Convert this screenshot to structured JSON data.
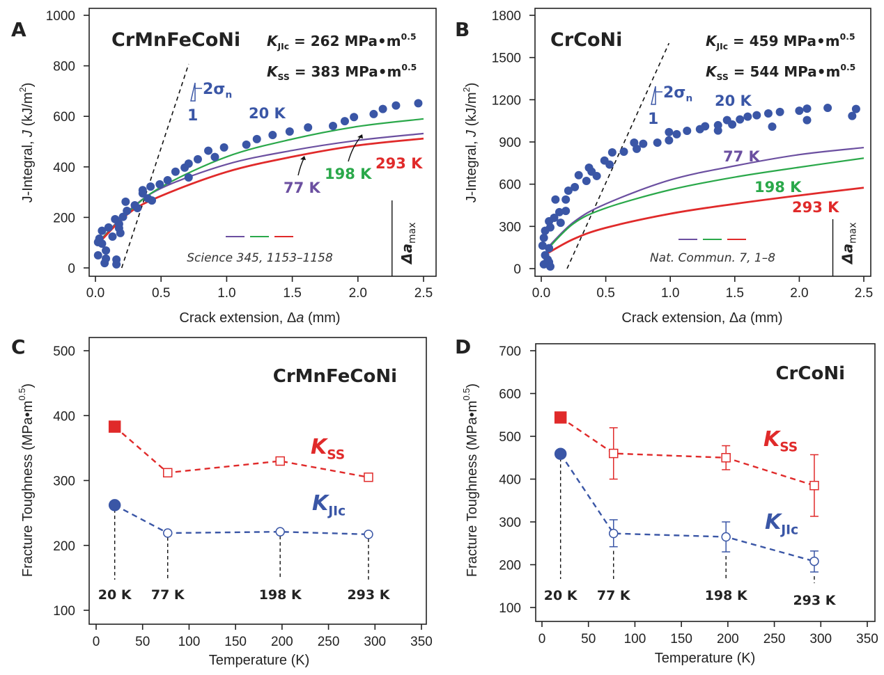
{
  "colors": {
    "blue": "#3a56a6",
    "purple": "#6b4fa0",
    "green": "#2aa84a",
    "red": "#e02a2a",
    "black": "#222222"
  },
  "chart_data": [
    {
      "panel": "A",
      "type": "scatter",
      "title": "CrMnFeCoNi",
      "xlabel": "Crack extension, Δa (mm)",
      "ylabel": "J-Integral, J (kJ/m²)",
      "xlim": [
        0,
        2.5
      ],
      "ylim": [
        0,
        1000
      ],
      "xticks": [
        "0.0",
        "0.5",
        "1.0",
        "1.5",
        "2.0",
        "2.5"
      ],
      "yticks": [
        "0",
        "200",
        "400",
        "600",
        "800",
        "1000"
      ],
      "annotations": {
        "kjic": {
          "k": "K",
          "sub": "JIc",
          "rest": " = 262 MPa•m",
          "sup": "0.5"
        },
        "kss": {
          "k": "K",
          "sub": "SS",
          "rest": " = 383 MPa•m",
          "sup": "0.5"
        },
        "slope": {
          "rise": "2σ",
          "rise_sub": "n",
          "run": "1"
        },
        "dmax": {
          "main": "Δa",
          "sub": "max"
        },
        "reference": "Science 345, 1153–1158"
      },
      "blunting_line": {
        "x": [
          0.2,
          0.71
        ],
        "y": [
          0,
          807
        ]
      },
      "delta_a_max": 2.26,
      "scatter": {
        "name": "20 K",
        "x": [
          2.46,
          2.29,
          2.19,
          2.12,
          1.97,
          1.9,
          1.81,
          1.62,
          1.48,
          1.35,
          1.23,
          1.15,
          0.98,
          0.91,
          0.86,
          0.78,
          0.71,
          0.68,
          0.71,
          0.61,
          0.55,
          0.49,
          0.42,
          0.36,
          0.36,
          0.4,
          0.43,
          0.32,
          0.3,
          0.23,
          0.24,
          0.21,
          0.18,
          0.15,
          0.18,
          0.19,
          0.1,
          0.05,
          0.13,
          0.03,
          0.02,
          0.08,
          0.02,
          0.08,
          0.07,
          0.16,
          0.16,
          0.05
        ],
        "y": [
          652,
          643,
          629,
          609,
          597,
          581,
          562,
          556,
          540,
          526,
          510,
          488,
          477,
          439,
          464,
          430,
          413,
          397,
          358,
          381,
          347,
          331,
          322,
          308,
          295,
          275,
          267,
          237,
          248,
          262,
          226,
          202,
          174,
          193,
          157,
          138,
          160,
          147,
          124,
          116,
          102,
          69,
          50,
          37,
          19,
          33,
          14,
          96
        ]
      },
      "curves": [
        {
          "name": "77 K",
          "color": "purple",
          "x": [
            0.02,
            0.25,
            0.5,
            1.0,
            1.5,
            2.0,
            2.5
          ],
          "y": [
            100,
            225,
            315,
            410,
            465,
            505,
            532
          ]
        },
        {
          "name": "198 K",
          "color": "green",
          "x": [
            0.02,
            0.25,
            0.5,
            1.0,
            1.5,
            2.0,
            2.5
          ],
          "y": [
            100,
            220,
            320,
            440,
            510,
            560,
            590
          ]
        },
        {
          "name": "293 K",
          "color": "red",
          "x": [
            0.02,
            0.25,
            0.5,
            1.0,
            1.5,
            2.0,
            2.5
          ],
          "y": [
            95,
            215,
            285,
            380,
            440,
            485,
            512
          ]
        }
      ]
    },
    {
      "panel": "B",
      "type": "scatter",
      "title": "CrCoNi",
      "xlabel": "Crack extension, Δa (mm)",
      "ylabel": "J-Integral, J (kJ/m²)",
      "xlim": [
        0,
        2.5
      ],
      "ylim": [
        0,
        1800
      ],
      "xticks": [
        "0.0",
        "0.5",
        "1.0",
        "1.5",
        "2.0",
        "2.5"
      ],
      "yticks": [
        "0",
        "300",
        "600",
        "900",
        "1200",
        "1500",
        "1800"
      ],
      "annotations": {
        "kjic": {
          "k": "K",
          "sub": "JIc",
          "rest": " = 459 MPa•m",
          "sup": "0.5"
        },
        "kss": {
          "k": "K",
          "sub": "SS",
          "rest": " = 544 MPa•m",
          "sup": "0.5"
        },
        "slope": {
          "rise": "2σ",
          "rise_sub": "n",
          "run": "1"
        },
        "dmax": {
          "main": "Δa",
          "sub": "max"
        },
        "reference": "Nat. Commun. 7, 1–8"
      },
      "blunting_line": {
        "x": [
          0.2,
          0.99
        ],
        "y": [
          0,
          1602
        ]
      },
      "delta_a_max": 2.26,
      "scatter": {
        "name": "20 K",
        "x": [
          2.44,
          2.41,
          2.22,
          2.06,
          2.06,
          2.0,
          1.85,
          1.79,
          1.76,
          1.67,
          1.6,
          1.54,
          1.48,
          1.44,
          1.37,
          1.37,
          1.27,
          1.23,
          1.13,
          1.05,
          0.99,
          0.99,
          0.9,
          0.79,
          0.74,
          0.72,
          0.64,
          0.55,
          0.53,
          0.49,
          0.43,
          0.39,
          0.37,
          0.35,
          0.29,
          0.26,
          0.21,
          0.19,
          0.19,
          0.11,
          0.14,
          0.1,
          0.06,
          0.07,
          0.03,
          0.02,
          0.01,
          0.06,
          0.03,
          0.06,
          0.02,
          0.05,
          0.07,
          0.15
        ],
        "y": [
          1134,
          1085,
          1142,
          1137,
          1055,
          1122,
          1113,
          1009,
          1103,
          1090,
          1080,
          1060,
          1024,
          1055,
          1019,
          981,
          1011,
          991,
          979,
          955,
          912,
          970,
          895,
          887,
          851,
          895,
          831,
          826,
          739,
          768,
          658,
          689,
          717,
          623,
          664,
          579,
          554,
          491,
          410,
          491,
          401,
          361,
          336,
          293,
          269,
          219,
          163,
          145,
          95,
          46,
          30,
          64,
          15,
          326
        ]
      },
      "curves": [
        {
          "name": "77 K",
          "color": "purple",
          "x": [
            0.05,
            0.25,
            0.5,
            1.0,
            1.5,
            2.0,
            2.5
          ],
          "y": [
            150,
            330,
            460,
            630,
            730,
            810,
            860
          ]
        },
        {
          "name": "198 K",
          "color": "green",
          "x": [
            0.05,
            0.25,
            0.5,
            1.0,
            1.5,
            2.0,
            2.5
          ],
          "y": [
            140,
            320,
            430,
            560,
            650,
            720,
            785
          ]
        },
        {
          "name": "293 K",
          "color": "red",
          "x": [
            0.05,
            0.25,
            0.5,
            1.0,
            1.5,
            2.0,
            2.5
          ],
          "y": [
            110,
            210,
            290,
            390,
            460,
            520,
            575
          ]
        }
      ]
    },
    {
      "panel": "C",
      "type": "line",
      "title": "CrMnFeCoNi",
      "xlabel": "Temperature (K)",
      "ylabel": "Fracture Toughness (MPa•m0.5)",
      "ylabel_parts": {
        "main": "Fracture Toughness (MPa•m",
        "sup": "0.5",
        "end": ")"
      },
      "xlim": [
        0,
        350
      ],
      "ylim": [
        100,
        500
      ],
      "xticks": [
        "0",
        "50",
        "100",
        "150",
        "200",
        "250",
        "300",
        "350"
      ],
      "yticks": [
        "100",
        "200",
        "300",
        "400",
        "500"
      ],
      "temperature_labels": [
        "20 K",
        "77 K",
        "198 K",
        "293 K"
      ],
      "series": [
        {
          "name": "KSS",
          "label": {
            "k": "K",
            "sub": "SS"
          },
          "color": "red",
          "marker": "square",
          "x": [
            20,
            77,
            198,
            293
          ],
          "y": [
            383,
            312,
            330,
            305
          ]
        },
        {
          "name": "KJIc",
          "label": {
            "k": "K",
            "sub": "JIc"
          },
          "color": "blue",
          "marker": "circle",
          "x": [
            20,
            77,
            198,
            293
          ],
          "y": [
            262,
            219,
            221,
            217
          ]
        }
      ]
    },
    {
      "panel": "D",
      "type": "line",
      "title": "CrCoNi",
      "xlabel": "Temperature (K)",
      "ylabel": "Fracture Toughness (MPa•m0.5)",
      "ylabel_parts": {
        "main": "Fracture Toughness (MPa•m",
        "sup": "0.5",
        "end": ")"
      },
      "xlim": [
        0,
        350
      ],
      "ylim": [
        100,
        700
      ],
      "xticks": [
        "0",
        "50",
        "100",
        "150",
        "200",
        "250",
        "300",
        "350"
      ],
      "yticks": [
        "100",
        "200",
        "300",
        "400",
        "500",
        "600",
        "700"
      ],
      "temperature_labels": [
        "20 K",
        "77 K",
        "198 K",
        "293 K"
      ],
      "series": [
        {
          "name": "KSS",
          "label": {
            "k": "K",
            "sub": "SS"
          },
          "color": "red",
          "marker": "square",
          "x": [
            20,
            77,
            198,
            293
          ],
          "y": [
            544,
            460,
            450,
            385
          ],
          "err_low": [
            null,
            400,
            422,
            313
          ],
          "err_high": [
            null,
            520,
            478,
            457
          ]
        },
        {
          "name": "KJIc",
          "label": {
            "k": "K",
            "sub": "JIc"
          },
          "color": "blue",
          "marker": "circle",
          "x": [
            20,
            77,
            198,
            293
          ],
          "y": [
            459,
            273,
            265,
            208
          ],
          "err_low": [
            null,
            242,
            230,
            183
          ],
          "err_high": [
            null,
            305,
            300,
            232
          ]
        }
      ]
    }
  ]
}
